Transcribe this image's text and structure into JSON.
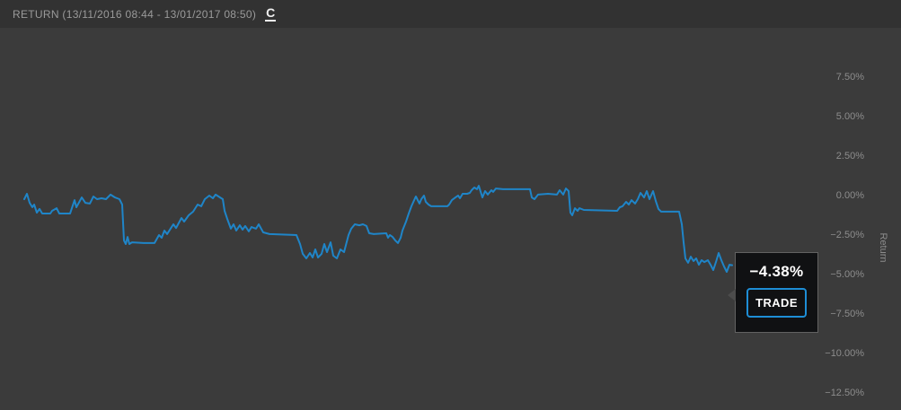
{
  "header": {
    "title": "RETURN (13/11/2016 08:44 - 13/01/2017 08:50)",
    "refresh_icon_glyph": "C"
  },
  "tooltip": {
    "value": "−4.38%",
    "trade_label": "TRADE"
  },
  "colors": {
    "line": "#1f85c8",
    "accent_blue": "#1e8ed6",
    "background": "#3b3b3b",
    "header_bg": "#323232",
    "axis_text": "#8d8d8d",
    "tooltip_bg": "#101113"
  },
  "chart_data": {
    "type": "line",
    "title": "Return",
    "ylabel": "Return",
    "x_range_label": "13/11/2016 08:44 - 13/01/2017 08:50",
    "grid": false,
    "legend": "none",
    "ylim": [
      -13.75,
      8.75
    ],
    "y_ticks": [
      7.5,
      5.0,
      2.5,
      0.0,
      -2.5,
      -5.0,
      -7.5,
      -10.0,
      -12.5
    ],
    "y_tick_labels": [
      "7.50%",
      "5.00%",
      "2.50%",
      "0.00%",
      "−2.50%",
      "−5.00%",
      "−7.50%",
      "−10.00%",
      "−12.50%"
    ],
    "final_value_pct": -4.38,
    "series": [
      {
        "name": "Return",
        "unit": "%",
        "points": [
          [
            27,
            -0.2
          ],
          [
            30,
            0.14
          ],
          [
            33,
            -0.43
          ],
          [
            36,
            -0.71
          ],
          [
            38,
            -0.54
          ],
          [
            41,
            -1.05
          ],
          [
            44,
            -0.82
          ],
          [
            47,
            -1.11
          ],
          [
            56,
            -1.11
          ],
          [
            58,
            -0.94
          ],
          [
            63,
            -0.77
          ],
          [
            66,
            -1.11
          ],
          [
            78,
            -1.11
          ],
          [
            83,
            -0.26
          ],
          [
            85,
            -0.71
          ],
          [
            91,
            -0.09
          ],
          [
            95,
            -0.43
          ],
          [
            100,
            -0.48
          ],
          [
            104,
            -0.03
          ],
          [
            108,
            -0.2
          ],
          [
            113,
            -0.14
          ],
          [
            118,
            -0.2
          ],
          [
            123,
            0.09
          ],
          [
            128,
            -0.09
          ],
          [
            133,
            -0.2
          ],
          [
            136,
            -0.54
          ],
          [
            138,
            -2.81
          ],
          [
            140,
            -3.04
          ],
          [
            142,
            -2.59
          ],
          [
            144,
            -3.04
          ],
          [
            147,
            -2.93
          ],
          [
            160,
            -2.98
          ],
          [
            172,
            -2.98
          ],
          [
            177,
            -2.47
          ],
          [
            180,
            -2.64
          ],
          [
            183,
            -2.19
          ],
          [
            186,
            -2.41
          ],
          [
            193,
            -1.79
          ],
          [
            196,
            -2.02
          ],
          [
            202,
            -1.39
          ],
          [
            205,
            -1.62
          ],
          [
            210,
            -1.22
          ],
          [
            215,
            -0.99
          ],
          [
            220,
            -0.54
          ],
          [
            224,
            -0.65
          ],
          [
            228,
            -0.2
          ],
          [
            233,
            0.03
          ],
          [
            237,
            -0.14
          ],
          [
            240,
            0.09
          ],
          [
            245,
            -0.09
          ],
          [
            248,
            -0.2
          ],
          [
            250,
            -0.94
          ],
          [
            253,
            -1.45
          ],
          [
            257,
            -2.07
          ],
          [
            260,
            -1.79
          ],
          [
            263,
            -2.19
          ],
          [
            267,
            -1.85
          ],
          [
            270,
            -2.13
          ],
          [
            273,
            -1.9
          ],
          [
            277,
            -2.24
          ],
          [
            280,
            -1.96
          ],
          [
            285,
            -2.07
          ],
          [
            288,
            -1.79
          ],
          [
            293,
            -2.3
          ],
          [
            300,
            -2.41
          ],
          [
            330,
            -2.47
          ],
          [
            334,
            -3.04
          ],
          [
            337,
            -3.66
          ],
          [
            341,
            -3.95
          ],
          [
            345,
            -3.61
          ],
          [
            348,
            -3.89
          ],
          [
            351,
            -3.38
          ],
          [
            354,
            -3.89
          ],
          [
            358,
            -3.66
          ],
          [
            361,
            -3.04
          ],
          [
            364,
            -3.55
          ],
          [
            368,
            -2.93
          ],
          [
            371,
            -3.78
          ],
          [
            375,
            -3.95
          ],
          [
            379,
            -3.38
          ],
          [
            383,
            -3.55
          ],
          [
            388,
            -2.47
          ],
          [
            391,
            -2.07
          ],
          [
            395,
            -1.79
          ],
          [
            400,
            -1.85
          ],
          [
            404,
            -1.79
          ],
          [
            408,
            -1.9
          ],
          [
            411,
            -2.36
          ],
          [
            416,
            -2.41
          ],
          [
            430,
            -2.36
          ],
          [
            432,
            -2.64
          ],
          [
            434,
            -2.47
          ],
          [
            437,
            -2.59
          ],
          [
            440,
            -2.81
          ],
          [
            443,
            -2.98
          ],
          [
            446,
            -2.64
          ],
          [
            448,
            -2.19
          ],
          [
            452,
            -1.62
          ],
          [
            455,
            -1.11
          ],
          [
            458,
            -0.65
          ],
          [
            462,
            -0.14
          ],
          [
            463,
            -0.03
          ],
          [
            465,
            -0.26
          ],
          [
            467,
            -0.48
          ],
          [
            469,
            -0.2
          ],
          [
            472,
            0.03
          ],
          [
            474,
            -0.37
          ],
          [
            477,
            -0.54
          ],
          [
            480,
            -0.65
          ],
          [
            498,
            -0.65
          ],
          [
            500,
            -0.54
          ],
          [
            503,
            -0.26
          ],
          [
            507,
            -0.09
          ],
          [
            510,
            0.03
          ],
          [
            512,
            -0.14
          ],
          [
            515,
            0.14
          ],
          [
            520,
            0.14
          ],
          [
            523,
            0.2
          ],
          [
            525,
            0.37
          ],
          [
            528,
            0.54
          ],
          [
            531,
            0.43
          ],
          [
            533,
            0.65
          ],
          [
            537,
            -0.09
          ],
          [
            540,
            0.31
          ],
          [
            543,
            0.09
          ],
          [
            547,
            0.37
          ],
          [
            549,
            0.26
          ],
          [
            552,
            0.48
          ],
          [
            560,
            0.43
          ],
          [
            590,
            0.43
          ],
          [
            592,
            -0.09
          ],
          [
            595,
            -0.2
          ],
          [
            599,
            0.09
          ],
          [
            610,
            0.14
          ],
          [
            620,
            0.09
          ],
          [
            623,
            0.37
          ],
          [
            627,
            0.09
          ],
          [
            630,
            0.48
          ],
          [
            633,
            0.31
          ],
          [
            635,
            -1.05
          ],
          [
            637,
            -1.22
          ],
          [
            640,
            -0.77
          ],
          [
            643,
            -0.94
          ],
          [
            645,
            -0.77
          ],
          [
            650,
            -0.88
          ],
          [
            687,
            -0.94
          ],
          [
            690,
            -0.71
          ],
          [
            693,
            -0.65
          ],
          [
            697,
            -0.37
          ],
          [
            700,
            -0.54
          ],
          [
            703,
            -0.26
          ],
          [
            707,
            -0.48
          ],
          [
            710,
            -0.2
          ],
          [
            713,
            0.2
          ],
          [
            717,
            -0.09
          ],
          [
            720,
            0.31
          ],
          [
            723,
            -0.2
          ],
          [
            727,
            0.31
          ],
          [
            730,
            -0.31
          ],
          [
            733,
            -0.82
          ],
          [
            736,
            -0.99
          ],
          [
            756,
            -0.99
          ],
          [
            759,
            -1.79
          ],
          [
            761,
            -2.93
          ],
          [
            763,
            -3.95
          ],
          [
            766,
            -4.23
          ],
          [
            769,
            -3.84
          ],
          [
            772,
            -4.12
          ],
          [
            775,
            -3.95
          ],
          [
            778,
            -4.35
          ],
          [
            781,
            -4.06
          ],
          [
            784,
            -4.18
          ],
          [
            788,
            -4.06
          ],
          [
            791,
            -4.35
          ],
          [
            794,
            -4.69
          ],
          [
            797,
            -4.18
          ],
          [
            800,
            -3.61
          ],
          [
            803,
            -4.06
          ],
          [
            806,
            -4.46
          ],
          [
            809,
            -4.8
          ],
          [
            812,
            -4.35
          ],
          [
            815,
            -4.38
          ]
        ]
      }
    ]
  }
}
